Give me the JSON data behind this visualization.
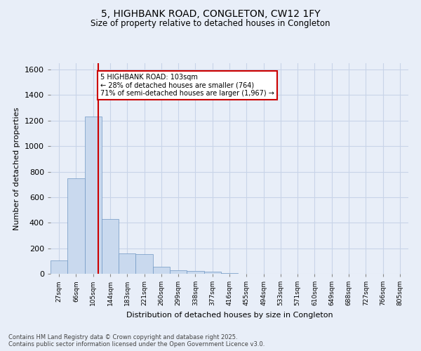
{
  "title": "5, HIGHBANK ROAD, CONGLETON, CW12 1FY",
  "subtitle": "Size of property relative to detached houses in Congleton",
  "xlabel": "Distribution of detached houses by size in Congleton",
  "ylabel": "Number of detached properties",
  "categories": [
    "27sqm",
    "66sqm",
    "105sqm",
    "144sqm",
    "183sqm",
    "221sqm",
    "260sqm",
    "299sqm",
    "338sqm",
    "377sqm",
    "416sqm",
    "455sqm",
    "494sqm",
    "533sqm",
    "571sqm",
    "610sqm",
    "649sqm",
    "688sqm",
    "727sqm",
    "766sqm",
    "805sqm"
  ],
  "values": [
    105,
    750,
    1230,
    430,
    160,
    155,
    55,
    30,
    20,
    15,
    5,
    2,
    0,
    0,
    0,
    0,
    0,
    0,
    0,
    0,
    0
  ],
  "bar_color": "#c9d9ee",
  "bar_edge_color": "#7098c4",
  "grid_color": "#c8d4e8",
  "background_color": "#e8eef8",
  "vline_x": 2.28,
  "vline_color": "#cc0000",
  "annotation_text": "5 HIGHBANK ROAD: 103sqm\n← 28% of detached houses are smaller (764)\n71% of semi-detached houses are larger (1,967) →",
  "annotation_box_color": "#cc0000",
  "ylim": [
    0,
    1650
  ],
  "yticks": [
    0,
    200,
    400,
    600,
    800,
    1000,
    1200,
    1400,
    1600
  ],
  "footnote": "Contains HM Land Registry data © Crown copyright and database right 2025.\nContains public sector information licensed under the Open Government Licence v3.0."
}
